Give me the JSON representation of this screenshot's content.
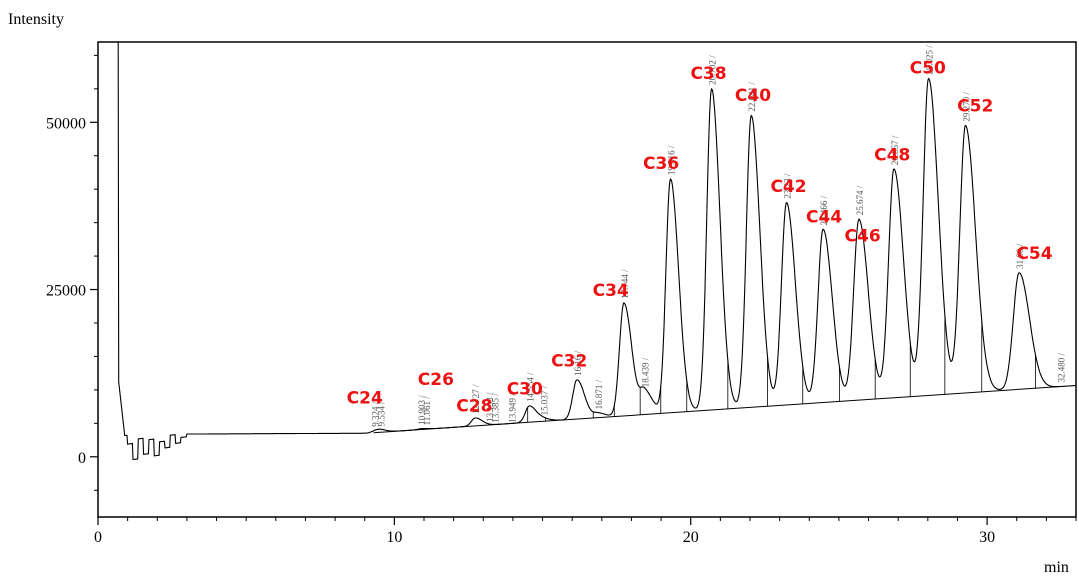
{
  "chart_data": {
    "type": "line",
    "ylabel": "Intensity",
    "xlabel": "min",
    "xlim": [
      0,
      33
    ],
    "ylim": [
      -9000,
      62000
    ],
    "xticks": [
      0,
      10,
      20,
      30
    ],
    "xtick_labels": [
      "0",
      "10",
      "20",
      "30"
    ],
    "yticks": [
      0,
      25000,
      50000
    ],
    "ytick_labels": [
      "0",
      "25000",
      "50000"
    ],
    "grid": false,
    "baseline": {
      "x": [
        9.3,
        32.48
      ],
      "y": [
        3600,
        10500
      ]
    },
    "peaks": [
      {
        "rt": 9.324,
        "rt_label": "9.324",
        "height": 3900
      },
      {
        "rt": 9.534,
        "rt_label": "9.534",
        "height": 3950
      },
      {
        "rt": 10.903,
        "rt_label": "10.903",
        "height": 4200
      },
      {
        "rt": 11.061,
        "rt_label": "11.061",
        "height": 4100
      },
      {
        "rt": 12.727,
        "rt_label": "12.727",
        "height": 5800
      },
      {
        "rt": 13.193,
        "rt_label": "13.193",
        "height": 4600
      },
      {
        "rt": 13.385,
        "rt_label": "13.385",
        "height": 4500
      },
      {
        "rt": 13.949,
        "rt_label": "13.949",
        "height": 4500
      },
      {
        "rt": 14.554,
        "rt_label": "14.554",
        "height": 7600
      },
      {
        "rt": 15.037,
        "rt_label": "15.037",
        "height": 5600
      },
      {
        "rt": 16.16,
        "rt_label": "16.16",
        "height": 11500
      },
      {
        "rt": 16.871,
        "rt_label": "16.871",
        "height": 6500
      },
      {
        "rt": 17.744,
        "rt_label": "17.744",
        "height": 23000
      },
      {
        "rt": 18.439,
        "rt_label": "18.439",
        "height": 9800
      },
      {
        "rt": 19.316,
        "rt_label": "19.316",
        "height": 41500
      },
      {
        "rt": 20.702,
        "rt_label": "20.702",
        "height": 55000
      },
      {
        "rt": 22.041,
        "rt_label": "22.041",
        "height": 51000
      },
      {
        "rt": 23.23,
        "rt_label": "23.23",
        "height": 38000
      },
      {
        "rt": 24.466,
        "rt_label": "24.466",
        "height": 34000
      },
      {
        "rt": 25.674,
        "rt_label": "25.674",
        "height": 35500
      },
      {
        "rt": 26.857,
        "rt_label": "26.857",
        "height": 43000
      },
      {
        "rt": 28.025,
        "rt_label": "28.025",
        "height": 56500
      },
      {
        "rt": 29.27,
        "rt_label": "29.270",
        "height": 49500
      },
      {
        "rt": 31.08,
        "rt_label": "31.08",
        "height": 27500
      },
      {
        "rt": 32.48,
        "rt_label": "32.480",
        "height": 10500
      }
    ],
    "annotations": [
      {
        "text": "C24",
        "rt": 9.0,
        "y": 8000
      },
      {
        "text": "C26",
        "rt": 11.4,
        "y": 10700
      },
      {
        "text": "C28",
        "rt": 12.7,
        "y": 6800
      },
      {
        "text": "C30",
        "rt": 14.4,
        "y": 9300
      },
      {
        "text": "C32",
        "rt": 15.9,
        "y": 13500
      },
      {
        "text": "C34",
        "rt": 17.3,
        "y": 24000
      },
      {
        "text": "C36",
        "rt": 19.0,
        "y": 43000
      },
      {
        "text": "C38",
        "rt": 20.6,
        "y": 56500
      },
      {
        "text": "C40",
        "rt": 22.1,
        "y": 53200
      },
      {
        "text": "C42",
        "rt": 23.3,
        "y": 39600
      },
      {
        "text": "C44",
        "rt": 24.5,
        "y": 35000
      },
      {
        "text": "C46",
        "rt": 25.8,
        "y": 32200
      },
      {
        "text": "C48",
        "rt": 26.8,
        "y": 44300
      },
      {
        "text": "C50",
        "rt": 28.0,
        "y": 57300
      },
      {
        "text": "C52",
        "rt": 29.6,
        "y": 51600
      },
      {
        "text": "C54",
        "rt": 31.6,
        "y": 29600
      }
    ]
  },
  "colors": {
    "trace": "#000000",
    "label": "#ee1111",
    "rt_label": "#555555"
  }
}
